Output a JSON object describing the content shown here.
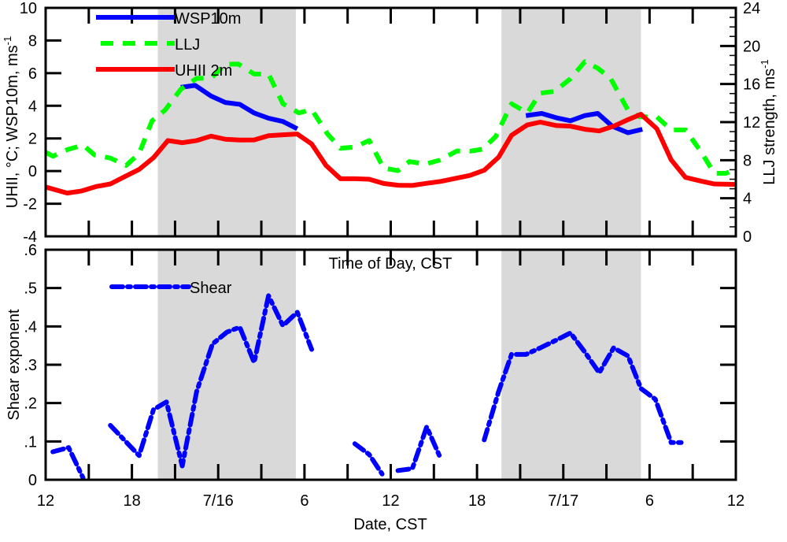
{
  "chart_data": [
    {
      "type": "line",
      "panel": "top",
      "x_unit": "hours since 12 CST 7/15",
      "xlim": [
        0,
        48
      ],
      "ylabel": "UHII, °C; WSP10m, ms",
      "ylabel_sup": "-1",
      "ylim": [
        -4,
        10
      ],
      "yticks": [
        -4,
        -2,
        0,
        2,
        4,
        6,
        8,
        10
      ],
      "y2label": "LLJ strength, ms",
      "y2label_sup": "-1",
      "y2lim": [
        0,
        24
      ],
      "y2ticks": [
        0,
        4,
        8,
        12,
        16,
        20,
        24
      ],
      "shaded_periods": [
        [
          7.8,
          17.4
        ],
        [
          31.7,
          41.4
        ]
      ],
      "legend_placement": "top-left",
      "series": [
        {
          "name": "WSP10m",
          "axis": "left",
          "color": "#0000ff",
          "style": "solid",
          "x": [
            9.4,
            10.4,
            11.5,
            12.5,
            13.5,
            14.5,
            15.5,
            16.5,
            17.5,
            null,
            33.4,
            34.5,
            35.5,
            36.5,
            37.5,
            38.4,
            39.4,
            40.5,
            41.5
          ],
          "y": [
            5.13,
            5.25,
            4.6,
            4.2,
            4.09,
            3.56,
            3.24,
            3.04,
            2.59,
            null,
            3.4,
            3.53,
            3.27,
            3.08,
            3.4,
            3.53,
            2.75,
            2.35,
            2.56
          ]
        },
        {
          "name": "LLJ",
          "axis": "right",
          "color": "#00ff00",
          "style": "dashed",
          "x": [
            0,
            0.5,
            1.5,
            2.6,
            3.4,
            4.5,
            5.6,
            6.5,
            7.4,
            8.3,
            9.4,
            10.5,
            11.5,
            12.5,
            13.4,
            14.5,
            15.5,
            16.5,
            17.6,
            18.5,
            19.6,
            20.5,
            21.5,
            22.5,
            23.5,
            24.5,
            25.3,
            26.4,
            27.4,
            28.6,
            29.5,
            30.4,
            31.3,
            32.4,
            33.5,
            34.4,
            35.4,
            36.5,
            37.5,
            38.4,
            39.3,
            40.5,
            41.3,
            42.5,
            43.5,
            44.5,
            45.6,
            46.5,
            47.3,
            48
          ],
          "y": [
            8.83,
            8.42,
            9.1,
            9.58,
            8.55,
            8.22,
            7.45,
            8.7,
            12.14,
            13.25,
            15.45,
            16.6,
            16.6,
            18.07,
            18.1,
            17.05,
            17.05,
            13.93,
            12.97,
            13.3,
            10.76,
            9.25,
            9.38,
            10.07,
            7.18,
            6.9,
            7.86,
            7.59,
            8.0,
            8.97,
            8.94,
            9.16,
            10.49,
            13.93,
            12.97,
            15.04,
            15.23,
            16.56,
            18.35,
            17.66,
            16.56,
            13.25,
            12.56,
            12.56,
            11.18,
            11.18,
            8.83,
            6.62,
            6.62,
            7.04
          ]
        },
        {
          "name": "UHII 2m",
          "axis": "left",
          "color": "#ff0000",
          "style": "solid",
          "x": [
            0,
            1.5,
            2.5,
            3.5,
            4.5,
            5.5,
            6.5,
            7.5,
            8.5,
            9.5,
            10.5,
            11.5,
            12.5,
            13.5,
            14.5,
            15.5,
            16.5,
            17.5,
            18.5,
            19.5,
            20.5,
            21.5,
            22.5,
            23.5,
            24.5,
            25.5,
            26.5,
            27.5,
            28.5,
            29.5,
            30.5,
            31.5,
            32.4,
            33.5,
            34.4,
            35.5,
            36.5,
            37.5,
            38.5,
            39.5,
            40.5,
            41.4,
            42.5,
            43.5,
            44.5,
            45.5,
            46.5,
            48
          ],
          "y": [
            -0.98,
            -1.35,
            -1.22,
            -0.95,
            -0.79,
            -0.34,
            0.1,
            0.82,
            1.87,
            1.74,
            1.87,
            2.14,
            1.95,
            1.9,
            1.91,
            2.17,
            2.22,
            2.27,
            1.66,
            0.34,
            -0.47,
            -0.47,
            -0.5,
            -0.76,
            -0.87,
            -0.88,
            -0.75,
            -0.63,
            -0.45,
            -0.27,
            0.05,
            0.85,
            2.19,
            2.83,
            3.0,
            2.79,
            2.75,
            2.56,
            2.46,
            2.75,
            3.15,
            3.48,
            2.6,
            0.69,
            -0.39,
            -0.6,
            -0.79,
            -0.82
          ]
        }
      ]
    },
    {
      "type": "line",
      "panel": "bottom",
      "title": "Time of Day, CST",
      "xlabel": "Date, CST",
      "xlim": [
        0,
        48
      ],
      "xticks": [
        0,
        6,
        12,
        18,
        24,
        30,
        36,
        42,
        48
      ],
      "xticklabels": [
        "12",
        "18",
        "7/16",
        "6",
        "12",
        "18",
        "7/17",
        "6",
        "12"
      ],
      "ylabel": "Shear exponent",
      "ylim": [
        0,
        0.6
      ],
      "yticks": [
        0,
        0.1,
        0.2,
        0.3,
        0.4,
        0.5,
        0.6
      ],
      "yticklabels": [
        "0",
        ".1",
        ".2",
        ".3",
        ".4",
        ".5",
        ".6"
      ],
      "shaded_periods": [
        [
          7.8,
          17.4
        ],
        [
          31.7,
          41.4
        ]
      ],
      "legend_placement": "top-left",
      "series": [
        {
          "name": "Shear",
          "color": "#0000ff",
          "style": "dash-dot",
          "x": [
            0.5,
            1.6,
            2.6,
            null,
            4.5,
            6.5,
            7.5,
            8.4,
            9.5,
            10.5,
            11.6,
            12.6,
            13.5,
            14.5,
            15.5,
            16.5,
            17.5,
            18.5,
            null,
            21.5,
            22.5,
            23.4,
            null,
            24.5,
            25.5,
            26.5,
            27.5,
            null,
            30.5,
            31.5,
            32.4,
            33.4,
            34.4,
            35.5,
            36.5,
            37.5,
            38.5,
            39.5,
            40.5,
            41.4,
            42.4,
            43.5,
            44.2
          ],
          "y": [
            0.073,
            0.084,
            0.005,
            null,
            0.142,
            0.063,
            0.183,
            0.203,
            0.036,
            0.23,
            0.354,
            0.385,
            0.398,
            0.306,
            0.48,
            0.402,
            0.437,
            0.34,
            null,
            0.094,
            0.066,
            0.015,
            null,
            0.024,
            0.029,
            0.138,
            0.053,
            null,
            0.104,
            0.23,
            0.327,
            0.327,
            0.344,
            0.364,
            0.383,
            0.333,
            0.279,
            0.344,
            0.323,
            0.238,
            0.21,
            0.097,
            0.097
          ]
        }
      ]
    }
  ],
  "colors": {
    "shade": "#d9d9d9",
    "axis": "#000000"
  }
}
